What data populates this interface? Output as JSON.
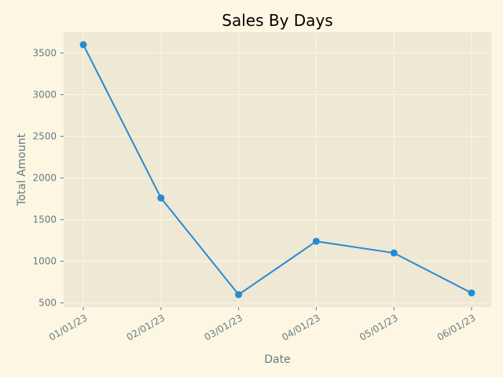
{
  "chart_data": {
    "type": "line",
    "title": "Sales By Days",
    "xlabel": "Date",
    "ylabel": "Total Amount",
    "categories": [
      "01/01/23",
      "02/01/23",
      "03/01/23",
      "04/01/23",
      "05/01/23",
      "06/01/23"
    ],
    "values": [
      3600,
      1760,
      600,
      1240,
      1100,
      620
    ],
    "ylim": [
      450,
      3750
    ],
    "yticks": [
      500,
      1000,
      1500,
      2000,
      2500,
      3000,
      3500
    ],
    "grid": true,
    "line_color": "#268bd2",
    "plot_background": "#eee8d5",
    "page_background": "#fdf6e3",
    "grid_color": "#fdf6e3"
  }
}
